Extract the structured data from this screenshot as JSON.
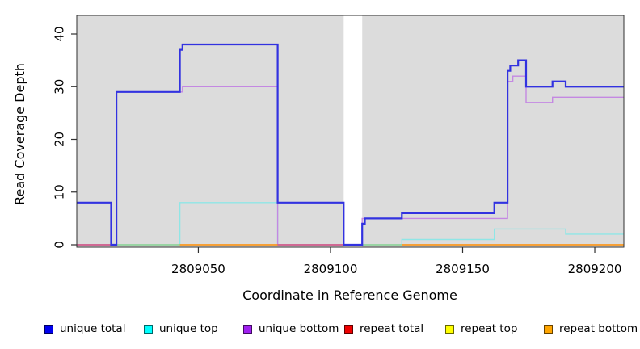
{
  "chart_data": {
    "type": "line",
    "subtype": "step",
    "title": "",
    "xlabel": "Coordinate in Reference Genome",
    "ylabel": "Read Coverage Depth",
    "x_ticks": [
      2809050,
      2809100,
      2809150,
      2809200
    ],
    "y_ticks": [
      0,
      10,
      20,
      30,
      40
    ],
    "x_range": [
      2809004,
      2809211
    ],
    "y_range": [
      0,
      40
    ],
    "grid": false,
    "legend_position": "bottom",
    "plot_background": "#DCDCDC",
    "masked_region": {
      "x_start": 2809105,
      "x_end": 2809112,
      "color": "#FFFFFF"
    },
    "series": [
      {
        "name": "unique total",
        "line_color": "#3232E0",
        "line_width": 2.2,
        "x": [
          2809004,
          2809017,
          2809019,
          2809043,
          2809044,
          2809080,
          2809105,
          2809112,
          2809113,
          2809127,
          2809162,
          2809167,
          2809168,
          2809171,
          2809174,
          2809184,
          2809189
        ],
        "y": [
          8,
          0,
          29,
          37,
          38,
          8,
          0,
          4,
          5,
          6,
          8,
          33,
          34,
          35,
          30,
          31,
          30
        ],
        "x_end": 2809211
      },
      {
        "name": "unique top",
        "line_color": "#8FE6E6",
        "line_width": 1.4,
        "x": [
          2809004,
          2809043,
          2809080,
          2809127,
          2809162,
          2809189
        ],
        "y": [
          0,
          8,
          0,
          1,
          3,
          2
        ],
        "x_end": 2809211
      },
      {
        "name": "unique bottom",
        "line_color": "#C488E2",
        "line_width": 1.4,
        "x": [
          2809004,
          2809019,
          2809044,
          2809080,
          2809112,
          2809167,
          2809169,
          2809174,
          2809184
        ],
        "y": [
          0,
          29,
          30,
          0,
          5,
          31,
          32,
          27,
          28
        ],
        "x_end": 2809211
      },
      {
        "name": "repeat total",
        "line_color": "#D6507A",
        "line_width": 1.4,
        "x": [
          2809004
        ],
        "y": [
          0
        ],
        "x_end": 2809211
      },
      {
        "name": "repeat top",
        "line_color": "#E8E85A",
        "line_width": 1.4,
        "x": [
          2809004
        ],
        "y": [
          0
        ],
        "x_end": 2809211
      },
      {
        "name": "repeat bottom",
        "line_color": "#FF8C00",
        "line_width": 1.4,
        "x": [
          2809004
        ],
        "y": [
          0
        ],
        "x_end": 2809211
      }
    ],
    "baseline_visible_segments": [
      {
        "x_start": 2809004,
        "x_end": 2809017,
        "color": "#D6507A"
      },
      {
        "x_start": 2809019,
        "x_end": 2809043,
        "color": "#90CF90"
      },
      {
        "x_start": 2809043,
        "x_end": 2809080,
        "color": "#FF8C00"
      },
      {
        "x_start": 2809080,
        "x_end": 2809105,
        "color": "#D6507A"
      },
      {
        "x_start": 2809112,
        "x_end": 2809127,
        "color": "#90CF90"
      },
      {
        "x_start": 2809127,
        "x_end": 2809211,
        "color": "#FF8C00"
      }
    ]
  },
  "legend": {
    "items": [
      {
        "label": "unique total",
        "swatch_color": "#0000EE"
      },
      {
        "label": "unique top",
        "swatch_color": "#00FFFF"
      },
      {
        "label": "unique bottom",
        "swatch_color": "#A020F0"
      },
      {
        "label": "repeat total",
        "swatch_color": "#EE0000"
      },
      {
        "label": "repeat top",
        "swatch_color": "#FFFF00"
      },
      {
        "label": "repeat bottom",
        "swatch_color": "#FFA500"
      }
    ]
  }
}
